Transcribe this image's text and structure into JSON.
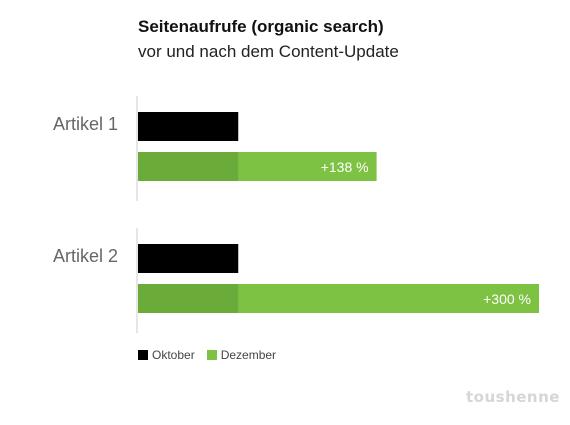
{
  "chart_data": {
    "type": "bar",
    "orientation": "horizontal",
    "title": "Seitenaufrufe (organic search)",
    "subtitle": "vor und nach dem Content-Update",
    "categories": [
      "Artikel 1",
      "Artikel 2"
    ],
    "series": [
      {
        "name": "Oktober",
        "values": [
          100,
          100
        ]
      },
      {
        "name": "Dezember",
        "values": [
          238,
          400
        ]
      }
    ],
    "data_labels": [
      "+138 %",
      "+300 %"
    ],
    "xlim": [
      0,
      400
    ],
    "grid": false,
    "legend_position": "bottom-left",
    "colors": {
      "oktober": "#000000",
      "dezember": "#7dc242",
      "dezember_overlap": "#6aab3a",
      "axis": "#cccccc",
      "category_label": "#666666"
    }
  },
  "watermark": "toushenne"
}
